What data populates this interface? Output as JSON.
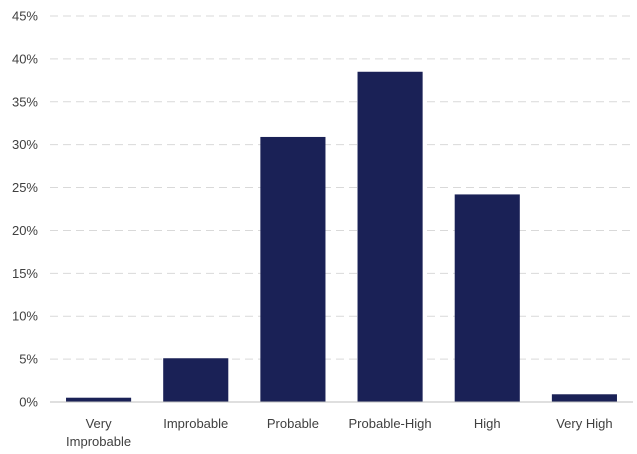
{
  "chart_data": {
    "type": "bar",
    "title": "",
    "xlabel": "",
    "ylabel": "",
    "categories": [
      "Very Improbable",
      "Improbable",
      "Probable",
      "Probable-High",
      "High",
      "Very High"
    ],
    "category_lines": [
      [
        "Very",
        "Improbable"
      ],
      [
        "Improbable"
      ],
      [
        "Probable"
      ],
      [
        "Probable-High"
      ],
      [
        "High"
      ],
      [
        "Very High"
      ]
    ],
    "values": [
      0.5,
      5.1,
      30.9,
      38.5,
      24.2,
      0.9
    ],
    "value_unit": "%",
    "ylim": [
      0,
      45
    ],
    "yticks": [
      0,
      5,
      10,
      15,
      20,
      25,
      30,
      35,
      40,
      45
    ],
    "ytick_labels": [
      "0%",
      "5%",
      "10%",
      "15%",
      "20%",
      "25%",
      "30%",
      "35%",
      "40%",
      "45%"
    ],
    "grid": "horizontal-dashed",
    "legend": "none",
    "bar_color": "#1a2156"
  }
}
